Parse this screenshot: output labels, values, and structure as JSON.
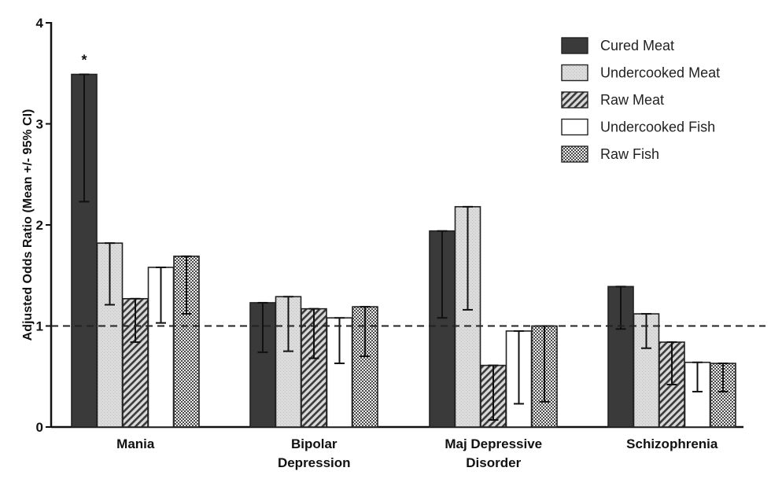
{
  "chart_data": {
    "type": "bar",
    "title": "",
    "xlabel": "",
    "ylabel": "Adjusted Odds Ratio (Mean +/- 95% CI)",
    "ylim": [
      0,
      4
    ],
    "yticks": [
      "0",
      "1",
      "2",
      "3",
      "4"
    ],
    "categories": [
      [
        "Mania"
      ],
      [
        "Bipolar",
        "Depression"
      ],
      [
        "Maj Depressive",
        "Disorder"
      ],
      [
        "Schizophrenia"
      ]
    ],
    "reference_line": 1,
    "annotations": [
      {
        "text": "*",
        "category_index": 0,
        "series_index": 0
      }
    ],
    "legend_position": "top-right",
    "series": [
      {
        "name": "Cured Meat",
        "pattern": "dark",
        "color": "#3a3a3a",
        "values": [
          3.49,
          1.23,
          1.94,
          1.39
        ],
        "ci": [
          [
            2.23,
            3.49
          ],
          [
            0.74,
            1.23
          ],
          [
            1.08,
            1.94
          ],
          [
            0.97,
            1.39
          ]
        ]
      },
      {
        "name": "Undercooked Meat",
        "pattern": "light-dots",
        "color": "#d8d8d8",
        "values": [
          1.82,
          1.29,
          2.18,
          1.12
        ],
        "ci": [
          [
            1.21,
            1.82
          ],
          [
            0.75,
            1.29
          ],
          [
            1.16,
            2.18
          ],
          [
            0.78,
            1.12
          ]
        ]
      },
      {
        "name": "Raw Meat",
        "pattern": "diagonal-hatch",
        "color": "#888888",
        "values": [
          1.27,
          1.17,
          0.61,
          0.84
        ],
        "ci": [
          [
            0.84,
            1.27
          ],
          [
            0.68,
            1.17
          ],
          [
            0.07,
            0.61
          ],
          [
            0.42,
            0.84
          ]
        ]
      },
      {
        "name": "Undercooked Fish",
        "pattern": "white",
        "color": "#ffffff",
        "values": [
          1.58,
          1.08,
          0.95,
          0.64
        ],
        "ci": [
          [
            1.03,
            1.58
          ],
          [
            0.63,
            1.08
          ],
          [
            0.23,
            0.95
          ],
          [
            0.35,
            0.64
          ]
        ]
      },
      {
        "name": "Raw Fish",
        "pattern": "checker",
        "color": "#9a9a9a",
        "values": [
          1.69,
          1.19,
          1.0,
          0.63
        ],
        "ci": [
          [
            1.12,
            1.69
          ],
          [
            0.7,
            1.19
          ],
          [
            0.25,
            1.0
          ],
          [
            0.35,
            0.63
          ]
        ]
      }
    ]
  }
}
